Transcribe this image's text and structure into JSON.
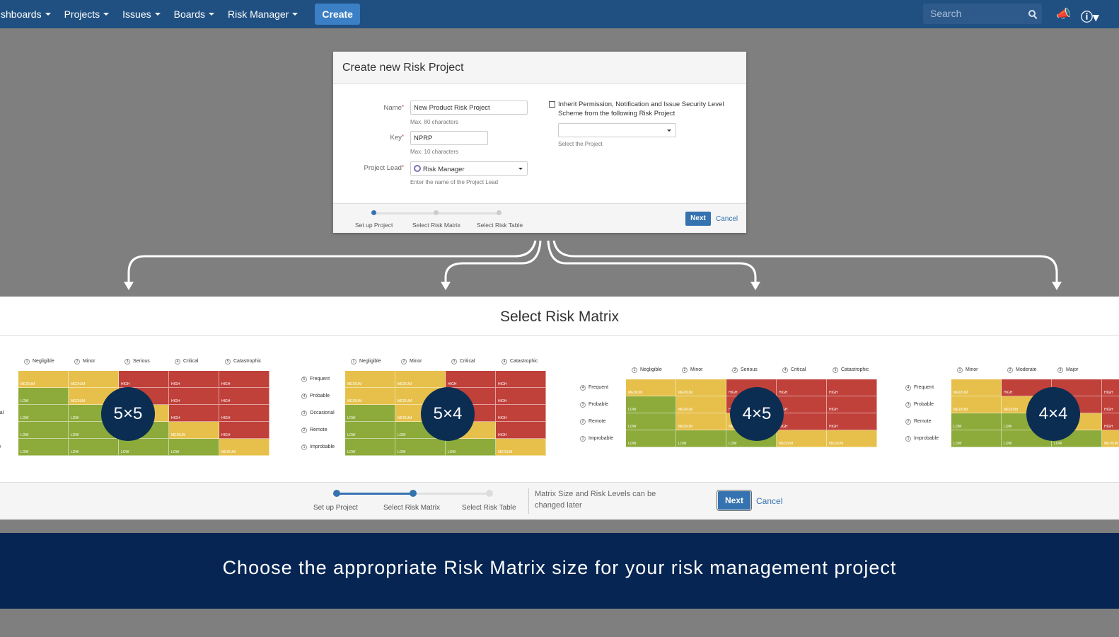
{
  "nav": {
    "items": [
      "shboards",
      "Projects",
      "Issues",
      "Boards",
      "Risk Manager"
    ],
    "create_label": "Create",
    "search_placeholder": "Search"
  },
  "dialog": {
    "title": "Create new Risk Project",
    "name_label": "Name",
    "name_value": "New Product Risk Project",
    "name_hint": "Max. 80 characters",
    "key_label": "Key",
    "key_value": "NPRP",
    "key_hint": "Max. 10 characters",
    "lead_label": "Project Lead",
    "lead_value": "Risk Manager",
    "lead_hint": "Enter the name of the Project Lead",
    "inherit_text": "Inherit Permission, Notification and Issue Security Level Scheme from the following Risk Project",
    "select_hint": "Select the Project",
    "steps": [
      "Set up Project",
      "Select Risk Matrix",
      "Select Risk Table"
    ],
    "next_label": "Next",
    "cancel_label": "Cancel"
  },
  "matrix_section": {
    "title": "Select Risk Matrix",
    "steps": [
      "Set up Project",
      "Select Risk Matrix",
      "Select Risk Table"
    ],
    "note": "Matrix Size and Risk Levels can be changed later",
    "next_label": "Next",
    "cancel_label": "Cancel"
  },
  "matrices": [
    {
      "size": "5×5",
      "columns": [
        "Negligible",
        "Minor",
        "Serious",
        "Critical",
        "Catastrophic"
      ],
      "rows": [
        "",
        "e",
        "onal",
        "",
        "ble"
      ],
      "grid": [
        [
          "MEDIUM",
          "MEDIUM",
          "HIGH",
          "HIGH",
          "HIGH"
        ],
        [
          "LOW",
          "MEDIUM",
          "HIGH",
          "HIGH",
          "HIGH"
        ],
        [
          "LOW",
          "LOW",
          "MEDIUM",
          "HIGH",
          "HIGH"
        ],
        [
          "LOW",
          "LOW",
          "LOW",
          "MEDIUM",
          "HIGH"
        ],
        [
          "LOW",
          "LOW",
          "LOW",
          "LOW",
          "MEDIUM"
        ]
      ]
    },
    {
      "size": "5×4",
      "columns": [
        "Negligible",
        "Minor",
        "Critical",
        "Catastrophic"
      ],
      "rows": [
        "Frequent",
        "Probable",
        "Occasional",
        "Remote",
        "Improbable"
      ],
      "grid": [
        [
          "MEDIUM",
          "MEDIUM",
          "HIGH",
          "HIGH"
        ],
        [
          "MEDIUM",
          "MEDIUM",
          "HIGH",
          "HIGH"
        ],
        [
          "LOW",
          "MEDIUM",
          "HIGH",
          "HIGH"
        ],
        [
          "LOW",
          "LOW",
          "MEDIUM",
          "HIGH"
        ],
        [
          "LOW",
          "LOW",
          "LOW",
          "MEDIUM"
        ]
      ]
    },
    {
      "size": "4×5",
      "columns": [
        "Negligible",
        "Minor",
        "Serious",
        "Critical",
        "Catastrophic"
      ],
      "rows": [
        "Frequent",
        "Probable",
        "Remote",
        "Improbable"
      ],
      "grid": [
        [
          "MEDIUM",
          "MEDIUM",
          "HIGH",
          "HIGH",
          "HIGH"
        ],
        [
          "LOW",
          "MEDIUM",
          "HIGH",
          "HIGH",
          "HIGH"
        ],
        [
          "LOW",
          "MEDIUM",
          "MEDIUM",
          "HIGH",
          "HIGH"
        ],
        [
          "LOW",
          "LOW",
          "LOW",
          "MEDIUM",
          "MEDIUM"
        ]
      ]
    },
    {
      "size": "4×4",
      "columns": [
        "Minor",
        "Moderate",
        "Major",
        ""
      ],
      "rows": [
        "Frequent",
        "Probable",
        "Remote",
        "Improbable"
      ],
      "grid": [
        [
          "MEDIUM",
          "HIGH",
          "HIGH",
          "HIGH"
        ],
        [
          "MEDIUM",
          "MEDIUM",
          "HIGH",
          "HIGH"
        ],
        [
          "LOW",
          "LOW",
          "MEDIUM",
          "HIGH"
        ],
        [
          "LOW",
          "LOW",
          "LOW",
          "MEDIUM"
        ]
      ]
    }
  ],
  "colors": {
    "LOW": "#8cab3a",
    "MEDIUM": "#e6c04a",
    "HIGH": "#c0403a",
    "accent": "#3572b0",
    "nav": "#205081"
  },
  "banner": "Choose the appropriate Risk Matrix size for your risk management project"
}
